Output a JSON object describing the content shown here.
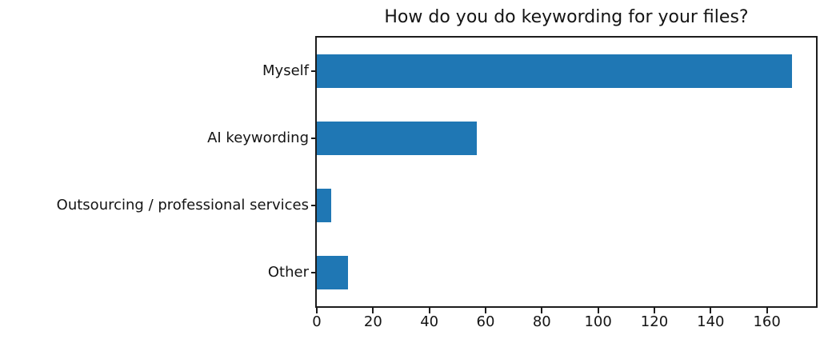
{
  "chart_data": {
    "type": "bar",
    "orientation": "horizontal",
    "title": "How do you do keywording for your files?",
    "categories": [
      "Myself",
      "AI keywording",
      "Outsourcing / professional services",
      "Other"
    ],
    "values": [
      169,
      57,
      5,
      11
    ],
    "x_ticks": [
      0,
      20,
      40,
      60,
      80,
      100,
      120,
      140,
      160
    ],
    "xlim": [
      0,
      177.45
    ],
    "xlabel": "",
    "ylabel": "",
    "bar_color": "#1f77b4",
    "grid": false,
    "legend": "none"
  }
}
